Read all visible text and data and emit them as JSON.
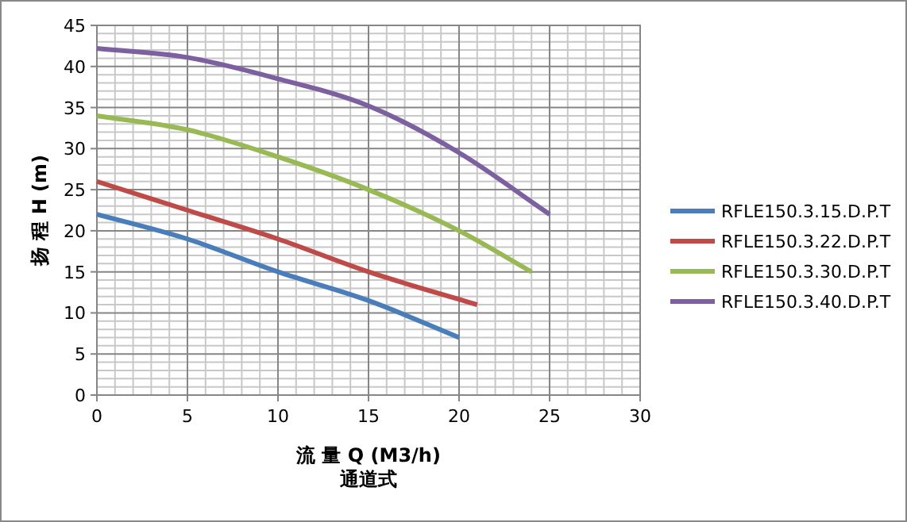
{
  "chart_data": {
    "type": "line",
    "xlabel": "流 量 Q (M3/h)",
    "ylabel": "扬 程 H (m)",
    "annotations": [
      "通道式"
    ],
    "xlim": [
      0,
      30
    ],
    "xticks": [
      0,
      5,
      10,
      15,
      20,
      25,
      30
    ],
    "ylim": [
      0,
      45
    ],
    "yticks": [
      0,
      5,
      10,
      15,
      20,
      25,
      30,
      35,
      40,
      45
    ],
    "grid": true,
    "legend": "right",
    "line_style": "solid",
    "marker": "none",
    "series": [
      {
        "name": "RFLE150.3.15.D.P.T",
        "color": "#4a7ebb",
        "x": [
          0,
          5,
          10,
          15,
          20
        ],
        "values": [
          22,
          19,
          15,
          11.5,
          7
        ]
      },
      {
        "name": "RFLE150.3.22.D.P.T",
        "color": "#be4b48",
        "x": [
          0,
          5,
          10,
          15,
          21
        ],
        "values": [
          26,
          22.5,
          19,
          15,
          11
        ]
      },
      {
        "name": "RFLE150.3.30.D.P.T",
        "color": "#98b954",
        "x": [
          0,
          5,
          10,
          15,
          20,
          24
        ],
        "values": [
          34,
          32.3,
          29,
          25,
          20,
          15
        ]
      },
      {
        "name": "RFLE150.3.40.D.P.T",
        "color": "#7d60a0",
        "x": [
          0,
          5,
          10,
          15,
          20,
          25
        ],
        "values": [
          42.2,
          41.1,
          38.5,
          35.2,
          29.5,
          22
        ]
      }
    ]
  }
}
